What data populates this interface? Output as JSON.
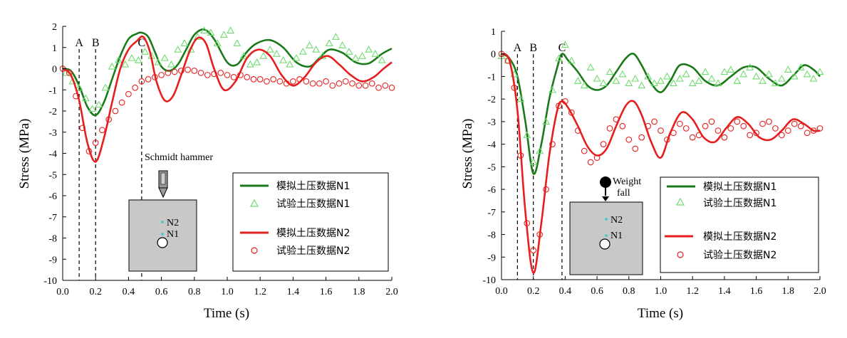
{
  "chart_data": [
    {
      "type": "line",
      "xlabel": "Time (s)",
      "ylabel": "Stress (MPa)",
      "xlim": [
        0,
        2.0
      ],
      "ylim": [
        -10,
        2
      ],
      "xticks": [
        "0.0",
        "0.2",
        "0.4",
        "0.6",
        "0.8",
        "1.0",
        "1.2",
        "1.4",
        "1.6",
        "1.8",
        "2.0"
      ],
      "yticks": [
        "2",
        "1",
        "0",
        "-1",
        "-2",
        "-3",
        "-4",
        "-5",
        "-6",
        "-7",
        "-8",
        "-9",
        "-10"
      ],
      "markers": [
        {
          "label": "A",
          "x": 0.1
        },
        {
          "label": "B",
          "x": 0.2
        },
        {
          "label": "C",
          "x": 0.48
        }
      ],
      "inset": {
        "tool_label": "Schmidt hammer",
        "n2_label": "N2",
        "n1_label": "N1"
      },
      "series": [
        {
          "name": "模拟土压数据N1",
          "kind": "line",
          "color": "#1a7a1a",
          "x": [
            0,
            0.05,
            0.1,
            0.15,
            0.2,
            0.25,
            0.3,
            0.35,
            0.4,
            0.45,
            0.48,
            0.52,
            0.56,
            0.6,
            0.65,
            0.7,
            0.75,
            0.8,
            0.86,
            0.92,
            1.0,
            1.06,
            1.12,
            1.18,
            1.26,
            1.34,
            1.42,
            1.5,
            1.56,
            1.62,
            1.7,
            1.78,
            1.86,
            1.94,
            2.0
          ],
          "y": [
            0,
            -0.1,
            -0.8,
            -1.8,
            -2.2,
            -1.6,
            -0.5,
            0.6,
            1.4,
            1.65,
            1.7,
            1.5,
            0.8,
            0.1,
            -0.1,
            0.2,
            0.9,
            1.6,
            1.85,
            1.4,
            0.3,
            0.2,
            0.8,
            1.2,
            1.35,
            1.0,
            0.3,
            0.1,
            0.5,
            0.9,
            0.75,
            0.3,
            0.25,
            0.7,
            0.95
          ]
        },
        {
          "name": "试验土压数据N1",
          "kind": "triangle",
          "color": "#6fdc6f",
          "x": [
            0.02,
            0.06,
            0.1,
            0.14,
            0.18,
            0.22,
            0.26,
            0.3,
            0.34,
            0.38,
            0.42,
            0.46,
            0.5,
            0.54,
            0.58,
            0.62,
            0.66,
            0.7,
            0.74,
            0.78,
            0.82,
            0.86,
            0.9,
            0.94,
            0.98,
            1.02,
            1.06,
            1.1,
            1.14,
            1.18,
            1.22,
            1.26,
            1.3,
            1.34,
            1.38,
            1.42,
            1.46,
            1.5,
            1.54,
            1.58,
            1.62,
            1.66,
            1.7,
            1.74,
            1.78,
            1.82,
            1.86,
            1.9,
            1.94
          ],
          "y": [
            -0.2,
            -0.6,
            -0.9,
            -1.4,
            -1.9,
            -1.7,
            -0.9,
            0.1,
            0.4,
            0.2,
            0.5,
            0.4,
            0.8,
            0.6,
            0.3,
            0.5,
            0.2,
            0.9,
            1.2,
            0.9,
            1.5,
            1.8,
            1.7,
            1.2,
            1.6,
            1.8,
            1.2,
            0.6,
            0.2,
            0.3,
            0.6,
            0.9,
            0.7,
            0.4,
            0.2,
            0.5,
            0.8,
            1.1,
            0.9,
            0.6,
            1.2,
            1.5,
            1.1,
            0.8,
            0.5,
            0.6,
            0.9,
            0.7,
            0.4
          ]
        },
        {
          "name": "模拟土压数据N2",
          "kind": "line",
          "color": "#e61e1e",
          "x": [
            0,
            0.05,
            0.1,
            0.15,
            0.2,
            0.25,
            0.3,
            0.35,
            0.4,
            0.45,
            0.49,
            0.53,
            0.57,
            0.62,
            0.67,
            0.72,
            0.77,
            0.82,
            0.87,
            0.92,
            0.98,
            1.05,
            1.12,
            1.19,
            1.26,
            1.33,
            1.4,
            1.47,
            1.54,
            1.61,
            1.68,
            1.75,
            1.82,
            1.89,
            1.95,
            2.0
          ],
          "y": [
            0,
            -0.3,
            -1.5,
            -3.5,
            -4.4,
            -3.3,
            -1.6,
            0.0,
            0.9,
            1.3,
            1.5,
            0.8,
            -0.6,
            -1.5,
            -1.3,
            -0.3,
            0.8,
            1.45,
            1.2,
            0.0,
            -1.0,
            -0.6,
            0.5,
            0.9,
            0.6,
            -0.3,
            -0.8,
            -0.4,
            0.3,
            0.6,
            0.2,
            -0.3,
            -0.6,
            -0.4,
            0.0,
            0.3
          ]
        },
        {
          "name": "试验土压数据N2",
          "kind": "circle",
          "color": "#e61e1e",
          "x": [
            0.0,
            0.04,
            0.08,
            0.12,
            0.16,
            0.2,
            0.24,
            0.28,
            0.32,
            0.36,
            0.4,
            0.44,
            0.48,
            0.52,
            0.56,
            0.6,
            0.64,
            0.68,
            0.72,
            0.76,
            0.8,
            0.84,
            0.88,
            0.92,
            0.96,
            1.0,
            1.04,
            1.08,
            1.12,
            1.16,
            1.2,
            1.24,
            1.28,
            1.32,
            1.36,
            1.4,
            1.44,
            1.48,
            1.52,
            1.56,
            1.6,
            1.64,
            1.68,
            1.72,
            1.76,
            1.8,
            1.84,
            1.88,
            1.92,
            1.96,
            2.0
          ],
          "y": [
            0.0,
            -0.2,
            -1.3,
            -2.8,
            -3.9,
            -3.5,
            -2.9,
            -2.4,
            -2.0,
            -1.6,
            -1.2,
            -0.9,
            -0.6,
            -0.5,
            -0.4,
            -0.3,
            -0.2,
            -0.15,
            -0.1,
            -0.05,
            -0.1,
            -0.2,
            -0.3,
            -0.25,
            -0.2,
            -0.3,
            -0.4,
            -0.3,
            -0.4,
            -0.5,
            -0.5,
            -0.6,
            -0.5,
            -0.6,
            -0.7,
            -0.6,
            -0.5,
            -0.6,
            -0.7,
            -0.7,
            -0.6,
            -0.8,
            -0.7,
            -0.6,
            -0.7,
            -0.8,
            -0.8,
            -0.7,
            -0.9,
            -0.8,
            -0.9
          ]
        }
      ],
      "legend": [
        "模拟土压数据N1",
        "试验土压数据N1",
        "模拟土压数据N2",
        "试验土压数据N2"
      ]
    },
    {
      "type": "line",
      "xlabel": "Time (s)",
      "ylabel": "Stress (MPa)",
      "xlim": [
        0,
        2.0
      ],
      "ylim": [
        -10,
        1
      ],
      "xticks": [
        "0.0",
        "0.2",
        "0.4",
        "0.6",
        "0.8",
        "1.0",
        "1.2",
        "1.4",
        "1.6",
        "1.8",
        "2.0"
      ],
      "yticks": [
        "1",
        "0",
        "-1",
        "-2",
        "-3",
        "-4",
        "-5",
        "-6",
        "-7",
        "-8",
        "-9",
        "-10"
      ],
      "markers": [
        {
          "label": "A",
          "x": 0.1
        },
        {
          "label": "B",
          "x": 0.2
        },
        {
          "label": "C",
          "x": 0.38
        }
      ],
      "inset": {
        "tool_label": "Weight\nfall",
        "n2_label": "N2",
        "n1_label": "N1"
      },
      "series": [
        {
          "name": "模拟土压数据N1",
          "kind": "line",
          "color": "#1a7a1a",
          "x": [
            0,
            0.05,
            0.1,
            0.15,
            0.2,
            0.25,
            0.3,
            0.35,
            0.38,
            0.42,
            0.48,
            0.54,
            0.6,
            0.66,
            0.72,
            0.78,
            0.83,
            0.88,
            0.94,
            1.0,
            1.06,
            1.12,
            1.2,
            1.28,
            1.36,
            1.44,
            1.52,
            1.6,
            1.68,
            1.76,
            1.84,
            1.9,
            1.96,
            2.0
          ],
          "y": [
            0,
            -0.2,
            -1.0,
            -3.0,
            -5.3,
            -4.0,
            -2.0,
            -0.6,
            0.0,
            -0.3,
            -0.8,
            -1.4,
            -1.6,
            -1.4,
            -0.8,
            -0.2,
            0.0,
            -0.5,
            -1.3,
            -1.7,
            -1.2,
            -0.5,
            -0.6,
            -1.2,
            -1.4,
            -1.0,
            -0.6,
            -0.6,
            -1.1,
            -1.4,
            -0.9,
            -0.5,
            -0.7,
            -1.0
          ]
        },
        {
          "name": "试验土压数据N1",
          "kind": "triangle",
          "color": "#6fdc6f",
          "x": [
            0.0,
            0.04,
            0.08,
            0.12,
            0.16,
            0.2,
            0.24,
            0.28,
            0.32,
            0.36,
            0.4,
            0.44,
            0.48,
            0.52,
            0.56,
            0.6,
            0.64,
            0.68,
            0.72,
            0.76,
            0.8,
            0.84,
            0.88,
            0.92,
            0.96,
            1.0,
            1.04,
            1.08,
            1.12,
            1.16,
            1.2,
            1.24,
            1.28,
            1.32,
            1.36,
            1.4,
            1.44,
            1.48,
            1.52,
            1.56,
            1.6,
            1.64,
            1.68,
            1.72,
            1.76,
            1.8,
            1.84,
            1.88,
            1.92,
            1.96,
            2.0
          ],
          "y": [
            -0.1,
            -0.3,
            -0.9,
            -2.0,
            -3.6,
            -4.8,
            -4.3,
            -3.0,
            -1.6,
            -0.2,
            0.4,
            -0.3,
            -1.2,
            -1.4,
            -0.6,
            -1.1,
            -1.3,
            -0.8,
            -1.2,
            -0.9,
            -1.3,
            -1.1,
            -1.4,
            -1.0,
            -1.3,
            -1.2,
            -1.0,
            -1.3,
            -1.1,
            -0.9,
            -1.3,
            -1.2,
            -0.8,
            -1.1,
            -1.3,
            -0.8,
            -0.7,
            -1.2,
            -0.9,
            -0.6,
            -1.0,
            -1.2,
            -0.9,
            -1.3,
            -1.1,
            -0.7,
            -1.0,
            -0.6,
            -0.9,
            -1.1,
            -0.8
          ]
        },
        {
          "name": "模拟土压数据N2",
          "kind": "line",
          "color": "#e61e1e",
          "x": [
            0,
            0.05,
            0.1,
            0.15,
            0.2,
            0.25,
            0.3,
            0.35,
            0.38,
            0.42,
            0.48,
            0.54,
            0.6,
            0.66,
            0.72,
            0.78,
            0.83,
            0.88,
            0.94,
            1.0,
            1.06,
            1.13,
            1.2,
            1.27,
            1.34,
            1.41,
            1.48,
            1.55,
            1.62,
            1.69,
            1.76,
            1.83,
            1.9,
            1.96,
            2.0
          ],
          "y": [
            0,
            -0.3,
            -2.5,
            -7.0,
            -9.7,
            -7.5,
            -4.5,
            -2.5,
            -2.1,
            -2.4,
            -3.2,
            -4.1,
            -4.5,
            -4.2,
            -3.2,
            -2.3,
            -2.1,
            -2.7,
            -3.9,
            -4.6,
            -3.5,
            -2.6,
            -2.9,
            -3.7,
            -3.9,
            -3.3,
            -2.8,
            -3.1,
            -3.7,
            -3.8,
            -3.4,
            -2.9,
            -3.1,
            -3.4,
            -3.4
          ]
        },
        {
          "name": "试验土压数据N2",
          "kind": "circle",
          "color": "#e61e1e",
          "x": [
            0.0,
            0.04,
            0.08,
            0.12,
            0.16,
            0.2,
            0.24,
            0.28,
            0.32,
            0.36,
            0.4,
            0.44,
            0.48,
            0.52,
            0.56,
            0.6,
            0.64,
            0.68,
            0.72,
            0.76,
            0.8,
            0.84,
            0.88,
            0.92,
            0.96,
            1.0,
            1.04,
            1.08,
            1.12,
            1.16,
            1.2,
            1.24,
            1.28,
            1.32,
            1.36,
            1.4,
            1.44,
            1.48,
            1.52,
            1.56,
            1.6,
            1.64,
            1.68,
            1.72,
            1.76,
            1.8,
            1.84,
            1.88,
            1.92,
            1.96,
            2.0
          ],
          "y": [
            0.0,
            -0.3,
            -1.5,
            -4.5,
            -7.5,
            -8.7,
            -8.0,
            -6.0,
            -4.0,
            -2.3,
            -2.1,
            -2.6,
            -3.4,
            -4.3,
            -4.8,
            -4.6,
            -4.0,
            -3.3,
            -2.9,
            -3.2,
            -3.8,
            -4.2,
            -3.7,
            -3.2,
            -3.0,
            -3.4,
            -3.8,
            -3.5,
            -3.1,
            -3.3,
            -3.7,
            -3.6,
            -3.2,
            -3.0,
            -3.4,
            -3.7,
            -3.3,
            -3.0,
            -3.2,
            -3.6,
            -3.5,
            -3.1,
            -3.0,
            -3.3,
            -3.6,
            -3.4,
            -3.1,
            -3.2,
            -3.5,
            -3.4,
            -3.3
          ]
        }
      ],
      "legend": [
        "模拟土压数据N1",
        "试验土压数据N1",
        "模拟土压数据N2",
        "试验土压数据N2"
      ]
    }
  ]
}
